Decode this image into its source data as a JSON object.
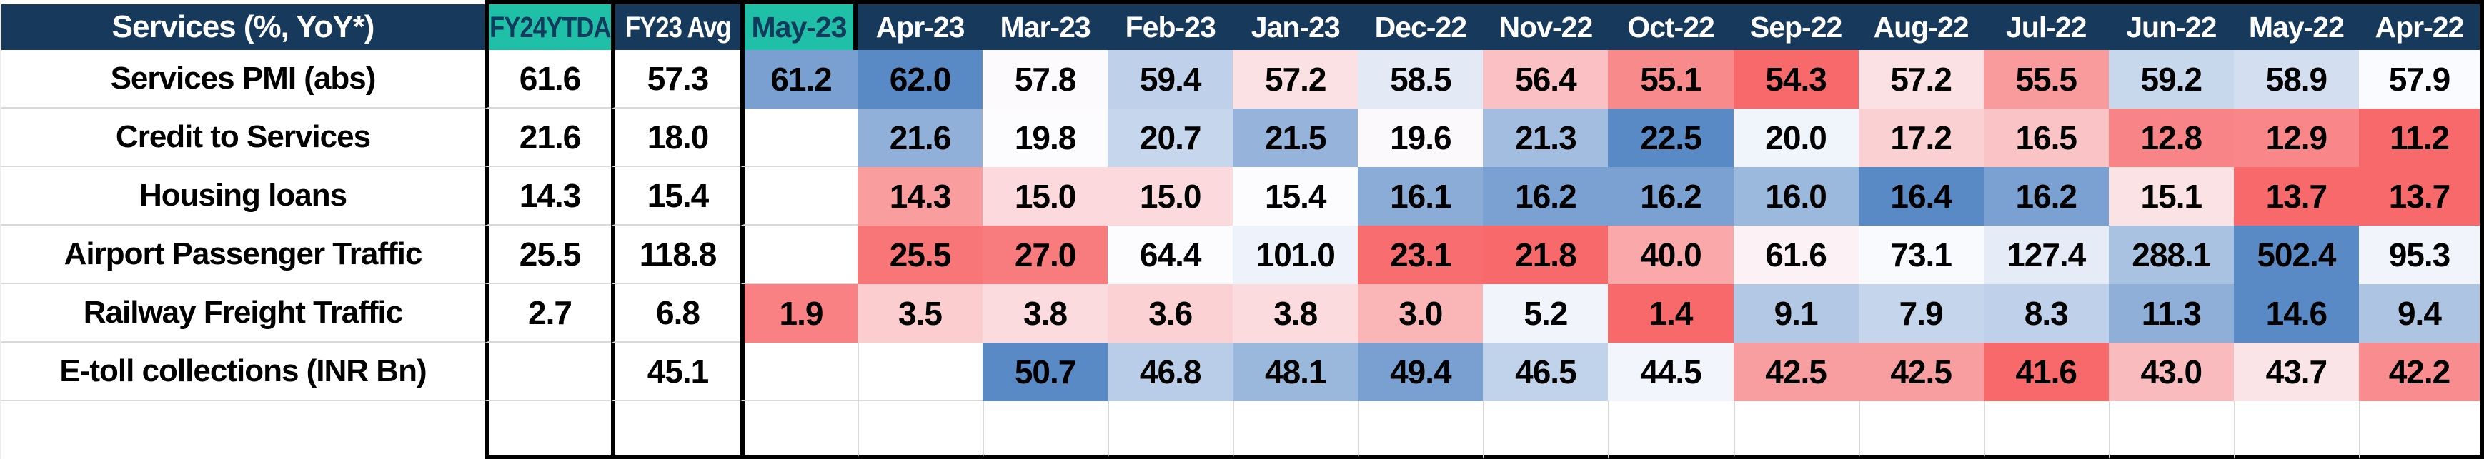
{
  "header": {
    "title": "Services (%, YoY*)",
    "fy_columns": [
      {
        "label": "FY24YTDA",
        "accent": "teal"
      },
      {
        "label": "FY23 Avg",
        "accent": "navy"
      }
    ],
    "month_columns": [
      {
        "label": "May-23",
        "accent": "teal"
      },
      {
        "label": "Apr-23",
        "accent": "navy"
      },
      {
        "label": "Mar-23",
        "accent": "navy"
      },
      {
        "label": "Feb-23",
        "accent": "navy"
      },
      {
        "label": "Jan-23",
        "accent": "navy"
      },
      {
        "label": "Dec-22",
        "accent": "navy"
      },
      {
        "label": "Nov-22",
        "accent": "navy"
      },
      {
        "label": "Oct-22",
        "accent": "navy"
      },
      {
        "label": "Sep-22",
        "accent": "navy"
      },
      {
        "label": "Aug-22",
        "accent": "navy"
      },
      {
        "label": "Jul-22",
        "accent": "navy"
      },
      {
        "label": "Jun-22",
        "accent": "navy"
      },
      {
        "label": "May-22",
        "accent": "navy"
      },
      {
        "label": "Apr-22",
        "accent": "navy"
      }
    ]
  },
  "chart_data": {
    "type": "heatmap",
    "title": "Services (%, YoY*)",
    "columns": [
      "FY24YTDA",
      "FY23 Avg",
      "May-23",
      "Apr-23",
      "Mar-23",
      "Feb-23",
      "Jan-23",
      "Dec-22",
      "Nov-22",
      "Oct-22",
      "Sep-22",
      "Aug-22",
      "Jul-22",
      "Jun-22",
      "May-22",
      "Apr-22"
    ],
    "rows": [
      {
        "label": "Services PMI (abs)",
        "fy24ytda": 61.6,
        "fy23_avg": 57.3,
        "monthly": [
          61.2,
          62.0,
          57.8,
          59.4,
          57.2,
          58.5,
          56.4,
          55.1,
          54.3,
          57.2,
          55.5,
          59.2,
          58.9,
          57.9
        ]
      },
      {
        "label": "Credit to Services",
        "fy24ytda": 21.6,
        "fy23_avg": 18.0,
        "monthly": [
          null,
          21.6,
          19.8,
          20.7,
          21.5,
          19.6,
          21.3,
          22.5,
          20.0,
          17.2,
          16.5,
          12.8,
          12.9,
          11.2
        ]
      },
      {
        "label": "Housing loans",
        "fy24ytda": 14.3,
        "fy23_avg": 15.4,
        "monthly": [
          null,
          14.3,
          15.0,
          15.0,
          15.4,
          16.1,
          16.2,
          16.2,
          16.0,
          16.4,
          16.2,
          15.1,
          13.7,
          13.7
        ]
      },
      {
        "label": "Airport Passenger Traffic",
        "fy24ytda": 25.5,
        "fy23_avg": 118.8,
        "monthly": [
          null,
          25.5,
          27.0,
          64.4,
          101.0,
          23.1,
          21.8,
          40.0,
          61.6,
          73.1,
          127.4,
          288.1,
          502.4,
          95.3
        ]
      },
      {
        "label": "Railway Freight Traffic",
        "fy24ytda": 2.7,
        "fy23_avg": 6.8,
        "monthly": [
          1.9,
          3.5,
          3.8,
          3.6,
          3.8,
          3.0,
          5.2,
          1.4,
          9.1,
          7.9,
          8.3,
          11.3,
          14.6,
          9.4
        ]
      },
      {
        "label": "E-toll collections (INR Bn)",
        "fy24ytda": null,
        "fy23_avg": 45.1,
        "monthly": [
          null,
          null,
          50.7,
          46.8,
          48.1,
          49.4,
          46.5,
          44.5,
          42.5,
          42.5,
          41.6,
          43.0,
          43.7,
          42.2
        ]
      }
    ],
    "color_scale": {
      "low": "#F8696B",
      "mid": "#FCFCFF",
      "high": "#5A8AC6",
      "mid_anchor": "row_median"
    },
    "value_format": "0.0",
    "legend_position": "none",
    "grid": true
  },
  "colors": {
    "header_navy": "#17395B",
    "header_teal": "#20BFA7",
    "header_text_on_navy": "#FFFFFF",
    "header_text_on_teal": "#113A5C",
    "cell_text": "#000000",
    "grid_line": "#D9D9D9",
    "box_border": "#000000",
    "blank_cell": "#FFFFFF"
  }
}
